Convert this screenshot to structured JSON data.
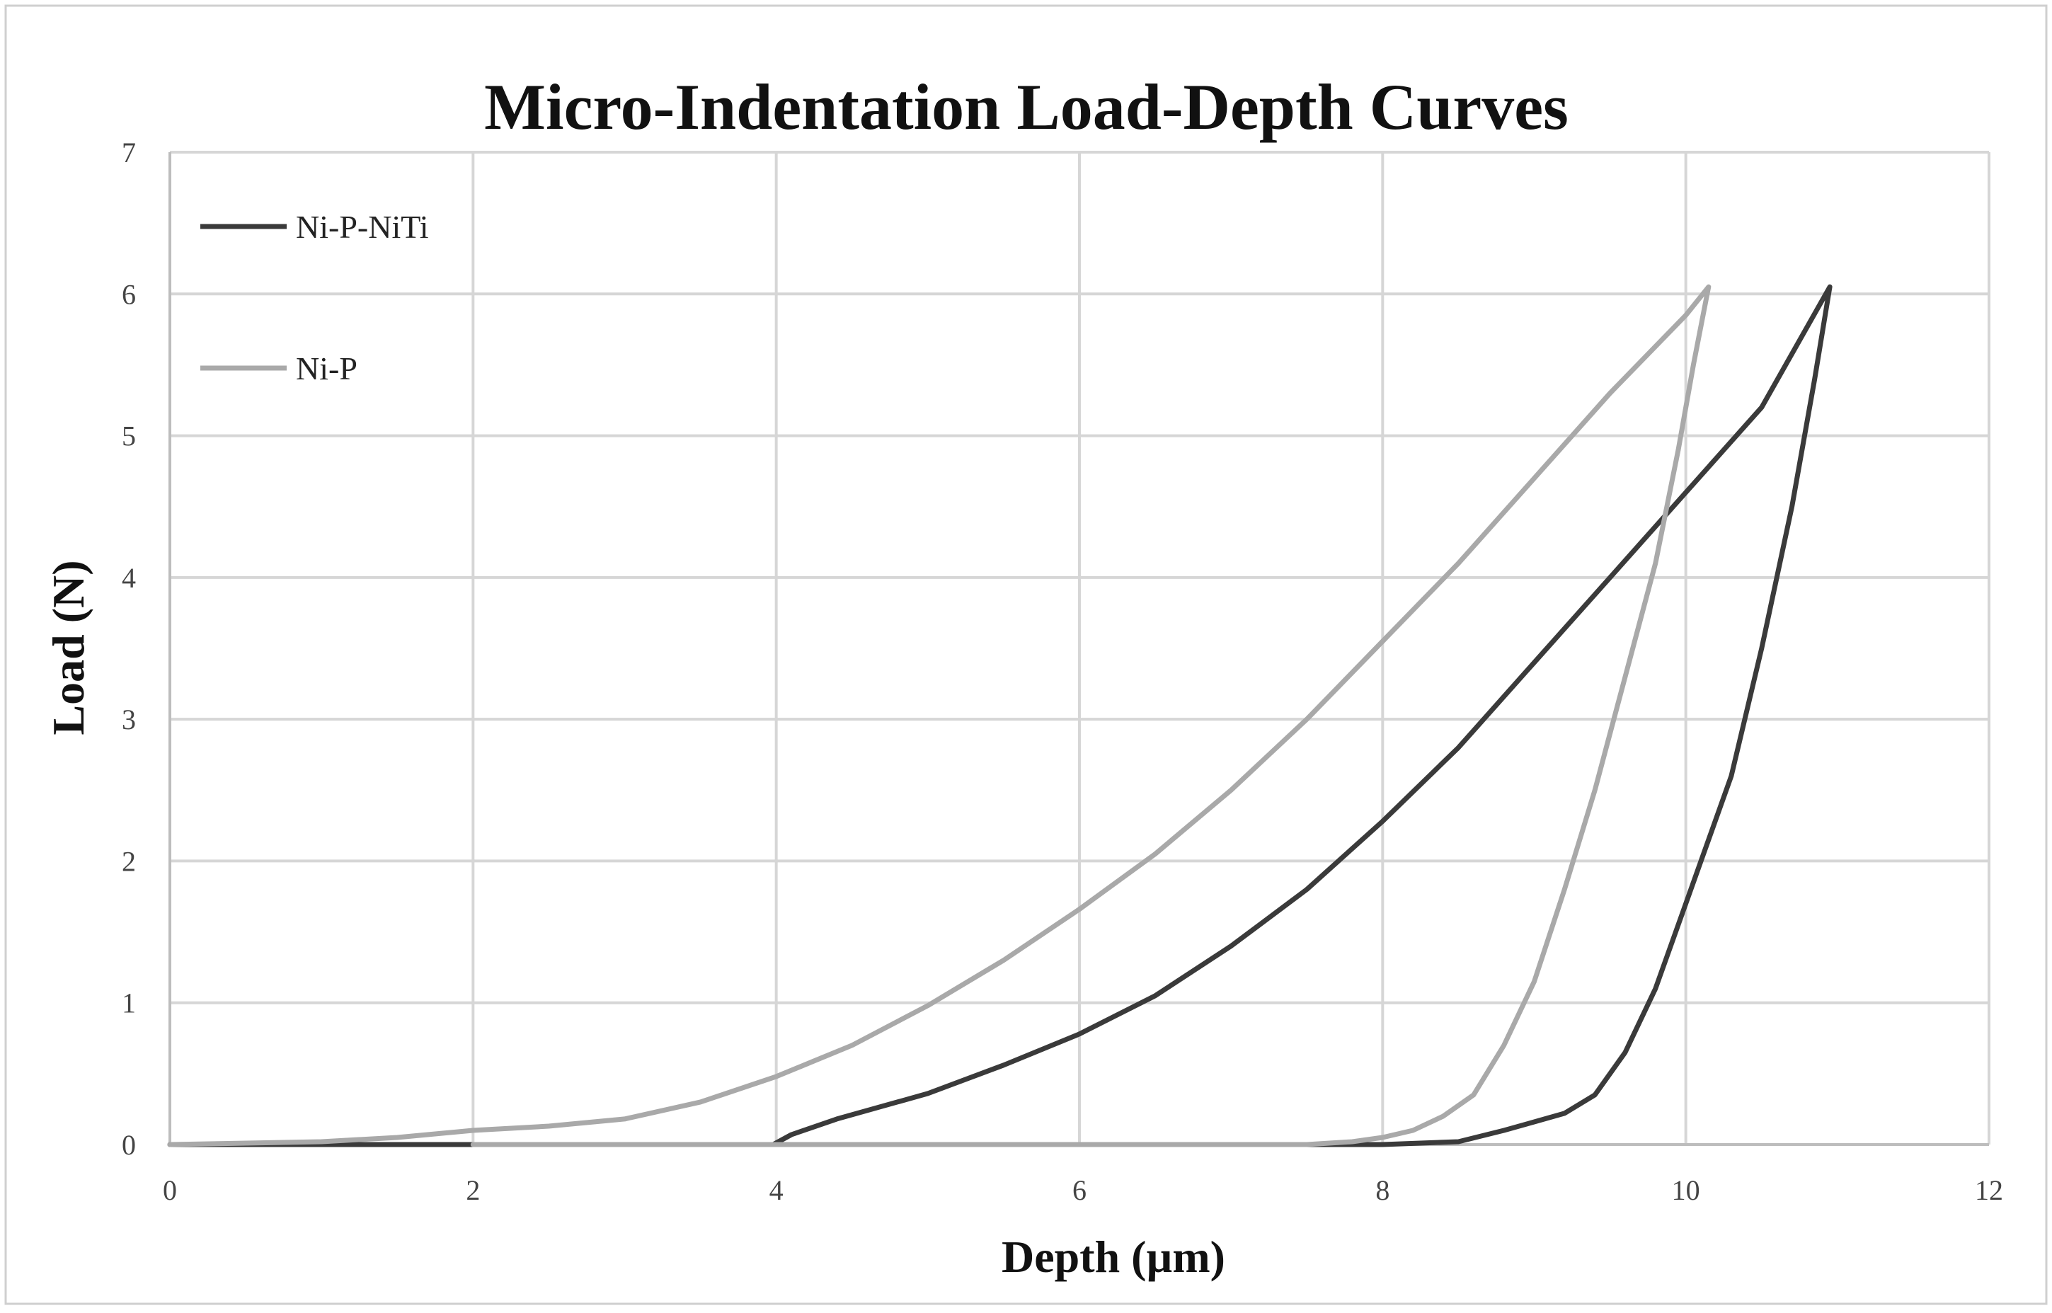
{
  "chart_data": {
    "type": "line",
    "title": "Micro-Indentation Load-Depth Curves",
    "xlabel": "Depth (µm)",
    "ylabel": "Load (N)",
    "xlim": [
      0,
      12
    ],
    "ylim": [
      0,
      7
    ],
    "x_ticks": [
      0,
      2,
      4,
      6,
      8,
      10,
      12
    ],
    "y_ticks": [
      0,
      1,
      2,
      3,
      4,
      5,
      6,
      7
    ],
    "grid": true,
    "legend_position": "top-left",
    "series": [
      {
        "name": "Ni-P-NiTi",
        "color": "#3a3a3a",
        "x": [
          0.0,
          1.0,
          2.0,
          3.0,
          3.98,
          4.1,
          4.4,
          5.0,
          5.5,
          6.0,
          6.5,
          7.0,
          7.5,
          8.0,
          8.5,
          9.0,
          9.5,
          10.0,
          10.5,
          10.95,
          10.85,
          10.7,
          10.5,
          10.3,
          10.0,
          9.8,
          9.6,
          9.4,
          9.2,
          9.0,
          8.8,
          8.5,
          8.0,
          6.0,
          4.0
        ],
        "y": [
          0.0,
          0.0,
          0.0,
          0.0,
          0.0,
          0.07,
          0.18,
          0.36,
          0.56,
          0.78,
          1.05,
          1.4,
          1.8,
          2.28,
          2.8,
          3.4,
          4.0,
          4.6,
          5.2,
          6.05,
          5.4,
          4.5,
          3.5,
          2.6,
          1.7,
          1.1,
          0.65,
          0.35,
          0.22,
          0.16,
          0.1,
          0.02,
          0.0,
          0.0,
          0.0
        ]
      },
      {
        "name": "Ni-P",
        "color": "#a9a9a9",
        "x": [
          0.0,
          1.0,
          1.5,
          2.0,
          2.5,
          3.0,
          3.5,
          4.0,
          4.5,
          5.0,
          5.5,
          6.0,
          6.5,
          7.0,
          7.5,
          8.0,
          8.5,
          9.0,
          9.5,
          10.0,
          10.15,
          10.05,
          9.95,
          9.8,
          9.6,
          9.4,
          9.2,
          9.0,
          8.8,
          8.6,
          8.4,
          8.2,
          8.0,
          7.8,
          7.5,
          6.0,
          4.0,
          2.0
        ],
        "y": [
          0.0,
          0.02,
          0.05,
          0.1,
          0.13,
          0.18,
          0.3,
          0.48,
          0.7,
          0.98,
          1.3,
          1.66,
          2.05,
          2.5,
          3.0,
          3.55,
          4.1,
          4.7,
          5.3,
          5.85,
          6.05,
          5.5,
          4.9,
          4.1,
          3.3,
          2.5,
          1.8,
          1.15,
          0.7,
          0.35,
          0.2,
          0.1,
          0.05,
          0.02,
          0.0,
          0.0,
          0.0,
          0.0
        ]
      }
    ]
  }
}
